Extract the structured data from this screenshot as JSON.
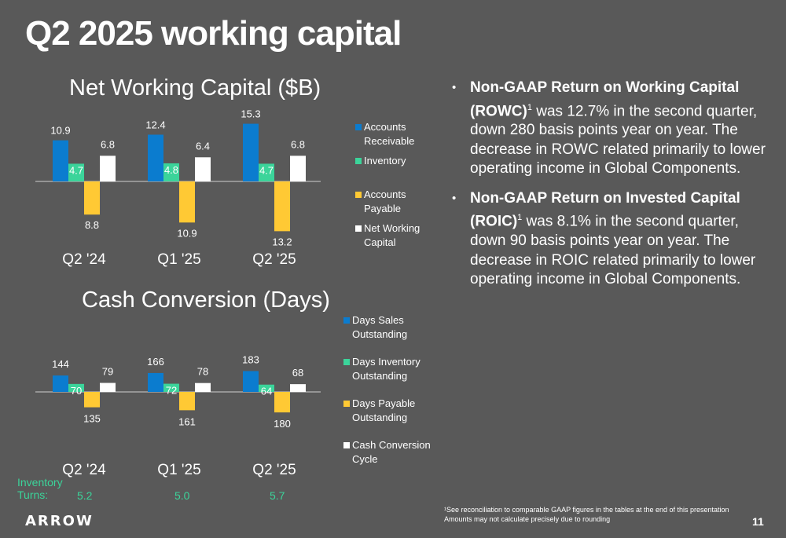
{
  "slide": {
    "title": "Q2 2025 working capital",
    "page_number": "11",
    "logo_text": "ARROW"
  },
  "colors": {
    "background": "#595959",
    "blue": "#0b7ccf",
    "green": "#3bd49a",
    "yellow": "#ffc934",
    "white": "#ffffff"
  },
  "chart_data": [
    {
      "type": "bar",
      "id": "nwc",
      "title": "Net Working Capital ($B)",
      "categories": [
        "Q2 '24",
        "Q1 '25",
        "Q2 '25"
      ],
      "series": [
        {
          "name": "Accounts Receivable",
          "color": "#0b7ccf",
          "values": [
            10.9,
            12.4,
            15.3
          ]
        },
        {
          "name": "Inventory",
          "color": "#3bd49a",
          "values": [
            4.7,
            4.8,
            4.7
          ]
        },
        {
          "name": "Accounts Payable",
          "color": "#ffc934",
          "values": [
            -8.8,
            -10.9,
            -13.2
          ]
        },
        {
          "name": "Net Working Capital",
          "color": "#ffffff",
          "values": [
            6.8,
            6.4,
            6.8
          ]
        }
      ],
      "legend_position": "right"
    },
    {
      "type": "bar",
      "id": "ccc",
      "title": "Cash Conversion (Days)",
      "categories": [
        "Q2 '24",
        "Q1 '25",
        "Q2 '25"
      ],
      "series": [
        {
          "name": "Days Sales Outstanding",
          "color": "#0b7ccf",
          "values": [
            144,
            166,
            183
          ]
        },
        {
          "name": "Days Inventory Outstanding",
          "color": "#3bd49a",
          "values": [
            70,
            72,
            64
          ]
        },
        {
          "name": "Days Payable Outstanding",
          "color": "#ffc934",
          "values": [
            -135,
            -161,
            -180
          ]
        },
        {
          "name": "Cash Conversion Cycle",
          "color": "#ffffff",
          "values": [
            79,
            78,
            68
          ]
        }
      ],
      "legend_position": "right"
    }
  ],
  "inventory_turns": {
    "label": "Inventory Turns:",
    "values": [
      "5.2",
      "5.0",
      "5.7"
    ]
  },
  "bullets": [
    {
      "bold": "Non-GAAP Return on Working Capital (ROWC)",
      "sup": "1",
      "text": " was 12.7% in the second quarter, down 280 basis points year on year. The decrease in ROWC related primarily to lower operating income in Global Components."
    },
    {
      "bold": "Non-GAAP Return on Invested Capital (ROIC)",
      "sup": "1",
      "text": " was 8.1% in the second quarter, down 90 basis points  year on year. The decrease in ROIC related primarily to lower operating income in Global Components."
    }
  ],
  "footnote": {
    "line1": "¹See reconciliation to comparable GAAP figures in the tables at the end of this presentation",
    "line2": "Amounts may not calculate precisely due to rounding"
  }
}
